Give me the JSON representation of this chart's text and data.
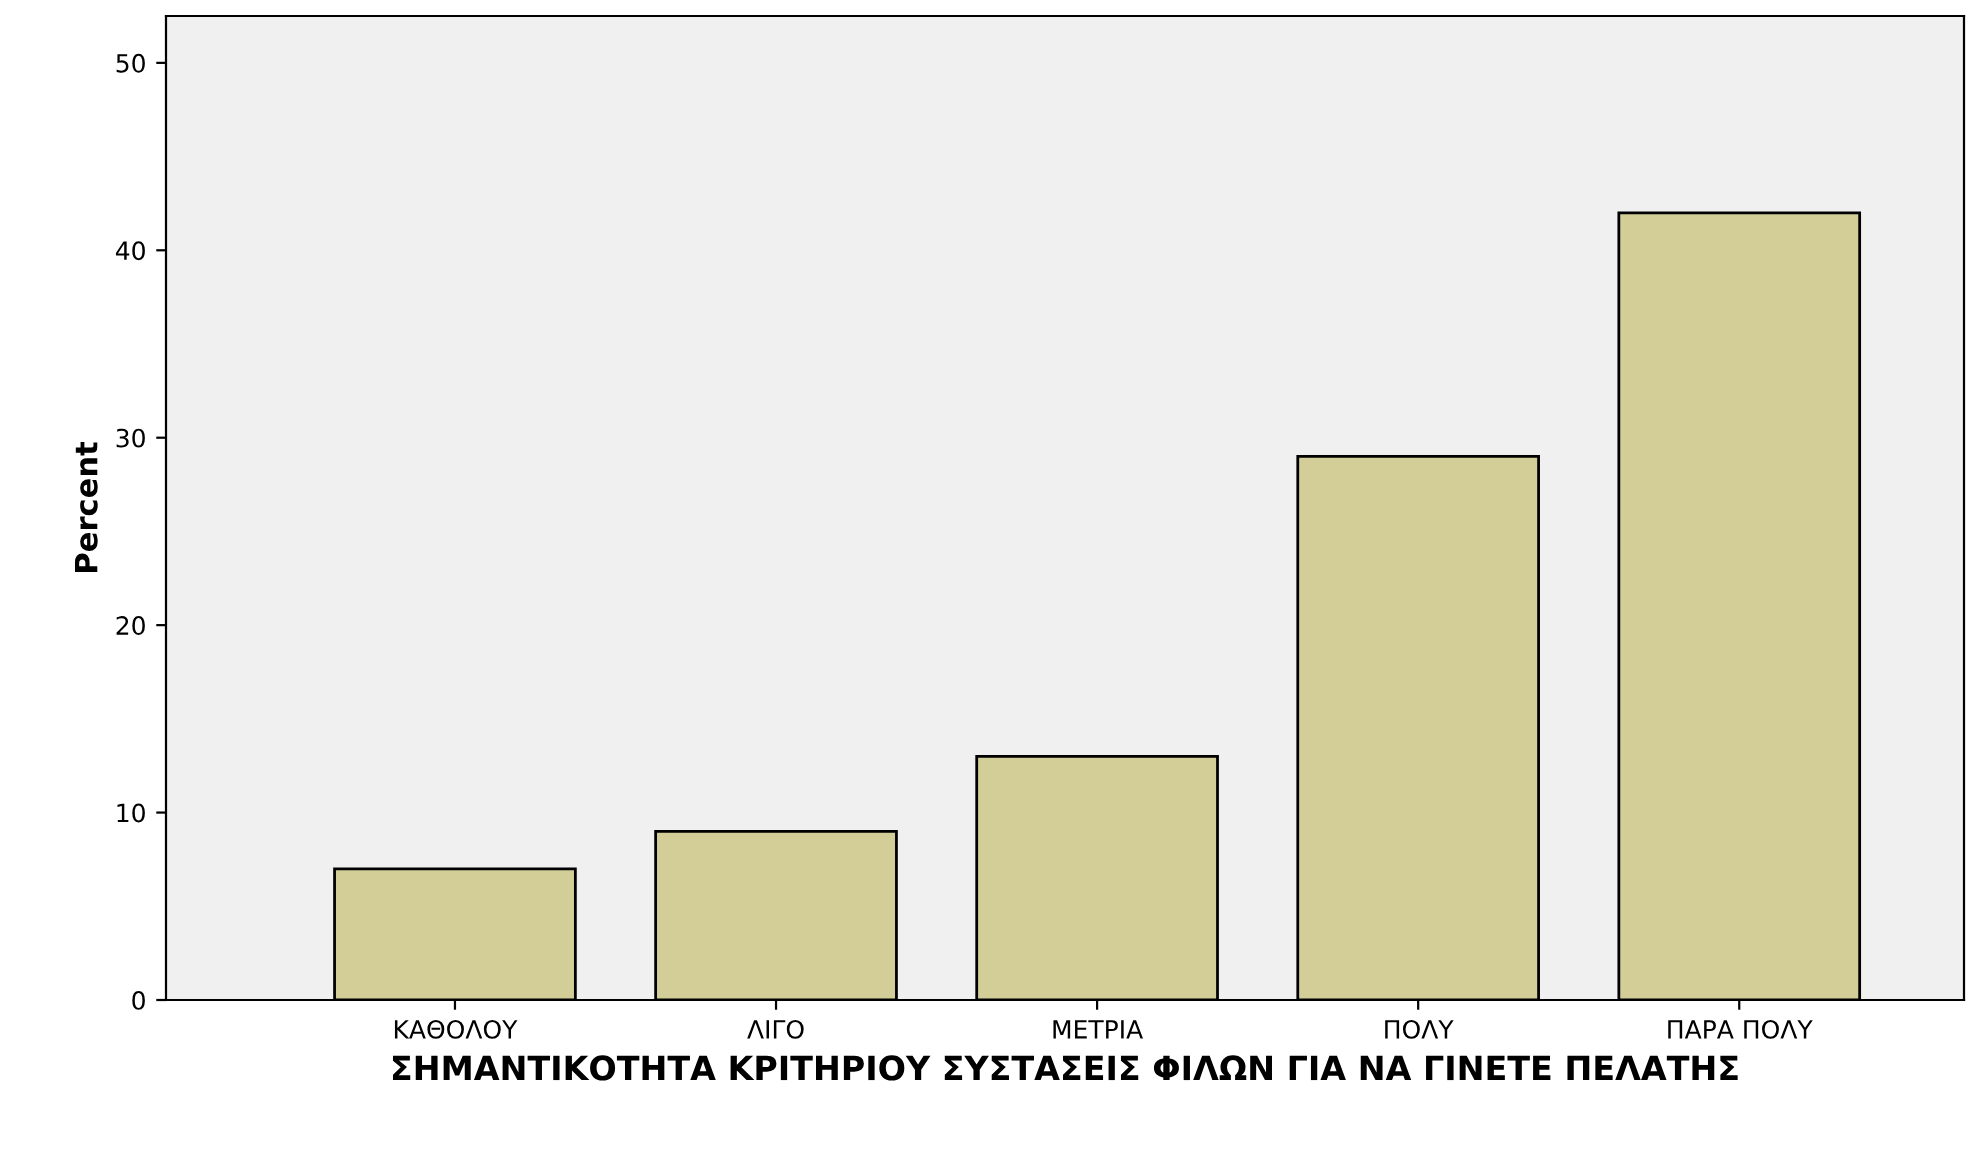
{
  "chart_data": {
    "type": "bar",
    "xlabel": "ΣΗΜΑΝΤΙΚΟΤΗΤΑ ΚΡΙΤΗΡΙΟΥ ΣΥΣΤΑΣΕΙΣ ΦΙΛΩΝ ΓΙΑ ΝΑ ΓΙΝΕΤΕ ΠΕΛΑΤΗΣ",
    "ylabel": "Percent",
    "categories": [
      "ΚΑΘΟΛΟΥ",
      "ΛΙΓΟ",
      "ΜΕΤΡΙΑ",
      "ΠΟΛΥ",
      "ΠΑΡΑ ΠΟΛΥ"
    ],
    "values": [
      7,
      9,
      13,
      29,
      42
    ],
    "color": "#d3ce97",
    "ylim": [
      0,
      52.5
    ],
    "yticks": [
      0,
      10,
      20,
      30,
      40,
      50
    ],
    "grid": false
  }
}
